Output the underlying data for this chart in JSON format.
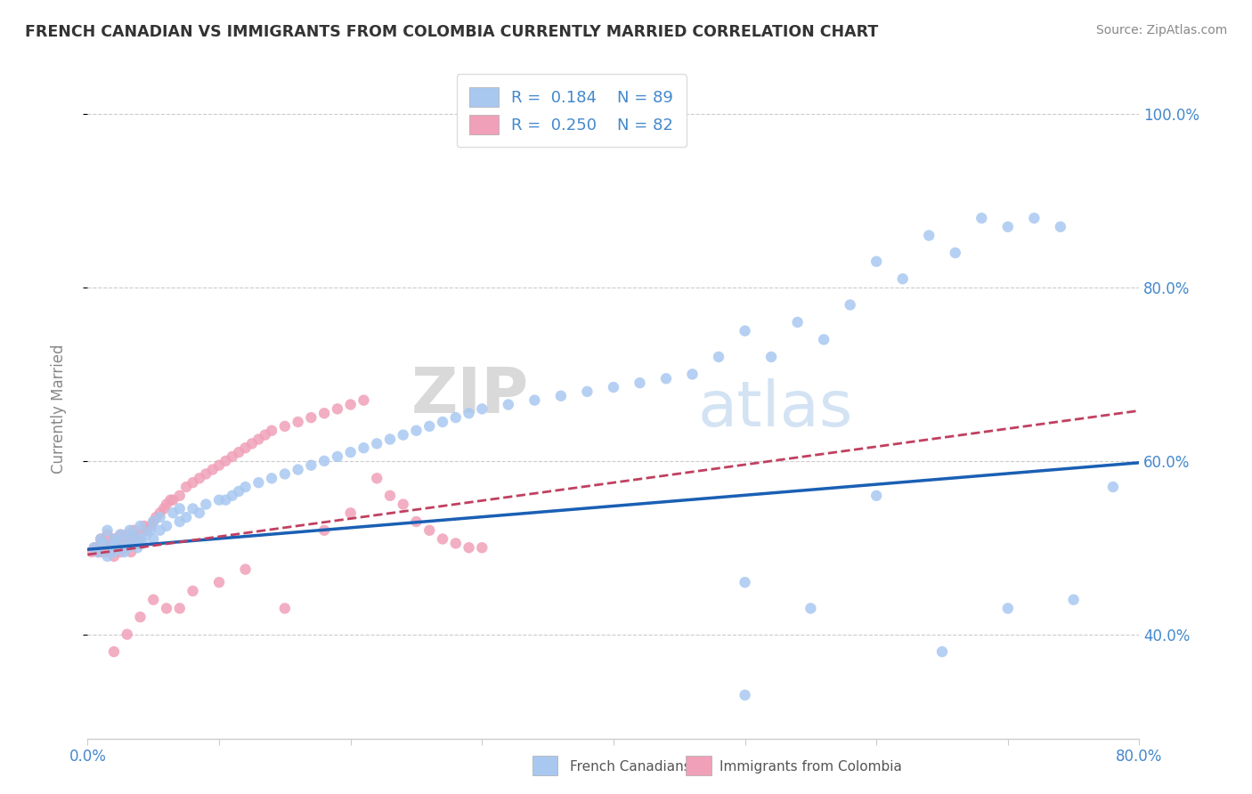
{
  "title": "FRENCH CANADIAN VS IMMIGRANTS FROM COLOMBIA CURRENTLY MARRIED CORRELATION CHART",
  "source_text": "Source: ZipAtlas.com",
  "ylabel": "Currently Married",
  "xlim": [
    0.0,
    0.8
  ],
  "ylim": [
    0.28,
    1.04
  ],
  "xticks": [
    0.0,
    0.1,
    0.2,
    0.3,
    0.4,
    0.5,
    0.6,
    0.7,
    0.8
  ],
  "xticklabels": [
    "0.0%",
    "",
    "",
    "",
    "",
    "",
    "",
    "",
    "80.0%"
  ],
  "yticks": [
    0.4,
    0.6,
    0.8,
    1.0
  ],
  "yticklabels": [
    "40.0%",
    "60.0%",
    "80.0%",
    "100.0%"
  ],
  "blue_color": "#a8c8f0",
  "pink_color": "#f0a0b8",
  "blue_line_color": "#1a5fb4",
  "pink_line_color": "#c04060",
  "legend_r_blue": "0.184",
  "legend_n_blue": "89",
  "legend_r_pink": "0.250",
  "legend_n_pink": "82",
  "legend_label_blue": "French Canadians",
  "legend_label_pink": "Immigrants from Colombia",
  "watermark_zip": "ZIP",
  "watermark_atlas": "atlas",
  "blue_scatter_x": [
    0.005,
    0.008,
    0.01,
    0.012,
    0.015,
    0.015,
    0.018,
    0.02,
    0.02,
    0.022,
    0.025,
    0.025,
    0.028,
    0.03,
    0.03,
    0.032,
    0.035,
    0.035,
    0.038,
    0.04,
    0.04,
    0.042,
    0.045,
    0.048,
    0.05,
    0.05,
    0.055,
    0.055,
    0.06,
    0.065,
    0.07,
    0.07,
    0.075,
    0.08,
    0.085,
    0.09,
    0.1,
    0.105,
    0.11,
    0.115,
    0.12,
    0.13,
    0.14,
    0.15,
    0.16,
    0.17,
    0.18,
    0.19,
    0.2,
    0.21,
    0.22,
    0.23,
    0.24,
    0.25,
    0.26,
    0.27,
    0.28,
    0.29,
    0.3,
    0.32,
    0.34,
    0.36,
    0.38,
    0.4,
    0.42,
    0.44,
    0.46,
    0.48,
    0.5,
    0.52,
    0.54,
    0.56,
    0.58,
    0.6,
    0.62,
    0.64,
    0.66,
    0.68,
    0.7,
    0.72,
    0.74,
    0.5,
    0.55,
    0.6,
    0.65,
    0.7,
    0.75,
    0.78,
    0.5
  ],
  "blue_scatter_y": [
    0.5,
    0.495,
    0.51,
    0.505,
    0.49,
    0.52,
    0.5,
    0.51,
    0.495,
    0.505,
    0.5,
    0.515,
    0.495,
    0.51,
    0.5,
    0.52,
    0.505,
    0.515,
    0.5,
    0.51,
    0.525,
    0.505,
    0.515,
    0.52,
    0.51,
    0.53,
    0.52,
    0.535,
    0.525,
    0.54,
    0.53,
    0.545,
    0.535,
    0.545,
    0.54,
    0.55,
    0.555,
    0.555,
    0.56,
    0.565,
    0.57,
    0.575,
    0.58,
    0.585,
    0.59,
    0.595,
    0.6,
    0.605,
    0.61,
    0.615,
    0.62,
    0.625,
    0.63,
    0.635,
    0.64,
    0.645,
    0.65,
    0.655,
    0.66,
    0.665,
    0.67,
    0.675,
    0.68,
    0.685,
    0.69,
    0.695,
    0.7,
    0.72,
    0.75,
    0.72,
    0.76,
    0.74,
    0.78,
    0.83,
    0.81,
    0.86,
    0.84,
    0.88,
    0.87,
    0.88,
    0.87,
    0.46,
    0.43,
    0.56,
    0.38,
    0.43,
    0.44,
    0.57,
    0.33
  ],
  "pink_scatter_x": [
    0.003,
    0.005,
    0.007,
    0.008,
    0.01,
    0.01,
    0.012,
    0.013,
    0.015,
    0.015,
    0.017,
    0.018,
    0.02,
    0.02,
    0.022,
    0.023,
    0.025,
    0.025,
    0.027,
    0.028,
    0.03,
    0.03,
    0.032,
    0.033,
    0.035,
    0.035,
    0.038,
    0.04,
    0.04,
    0.043,
    0.045,
    0.048,
    0.05,
    0.052,
    0.055,
    0.058,
    0.06,
    0.063,
    0.065,
    0.07,
    0.075,
    0.08,
    0.085,
    0.09,
    0.095,
    0.1,
    0.105,
    0.11,
    0.115,
    0.12,
    0.125,
    0.13,
    0.135,
    0.14,
    0.15,
    0.16,
    0.17,
    0.18,
    0.19,
    0.2,
    0.21,
    0.22,
    0.23,
    0.24,
    0.25,
    0.26,
    0.27,
    0.28,
    0.29,
    0.3,
    0.2,
    0.15,
    0.1,
    0.08,
    0.06,
    0.04,
    0.02,
    0.03,
    0.05,
    0.07,
    0.12,
    0.18
  ],
  "pink_scatter_y": [
    0.495,
    0.5,
    0.5,
    0.495,
    0.51,
    0.495,
    0.505,
    0.495,
    0.5,
    0.515,
    0.495,
    0.505,
    0.49,
    0.51,
    0.5,
    0.505,
    0.495,
    0.515,
    0.505,
    0.5,
    0.5,
    0.515,
    0.505,
    0.495,
    0.51,
    0.52,
    0.505,
    0.515,
    0.51,
    0.525,
    0.52,
    0.525,
    0.53,
    0.535,
    0.54,
    0.545,
    0.55,
    0.555,
    0.555,
    0.56,
    0.57,
    0.575,
    0.58,
    0.585,
    0.59,
    0.595,
    0.6,
    0.605,
    0.61,
    0.615,
    0.62,
    0.625,
    0.63,
    0.635,
    0.64,
    0.645,
    0.65,
    0.655,
    0.66,
    0.665,
    0.67,
    0.58,
    0.56,
    0.55,
    0.53,
    0.52,
    0.51,
    0.505,
    0.5,
    0.5,
    0.54,
    0.43,
    0.46,
    0.45,
    0.43,
    0.42,
    0.38,
    0.4,
    0.44,
    0.43,
    0.475,
    0.52
  ],
  "blue_trend_x": [
    0.0,
    0.8
  ],
  "blue_trend_y": [
    0.498,
    0.598
  ],
  "pink_trend_x": [
    0.0,
    0.8
  ],
  "pink_trend_y": [
    0.492,
    0.658
  ],
  "background_color": "#ffffff",
  "grid_color": "#cccccc",
  "title_color": "#333333",
  "axis_label_color": "#888888",
  "tick_color": "#4488cc"
}
